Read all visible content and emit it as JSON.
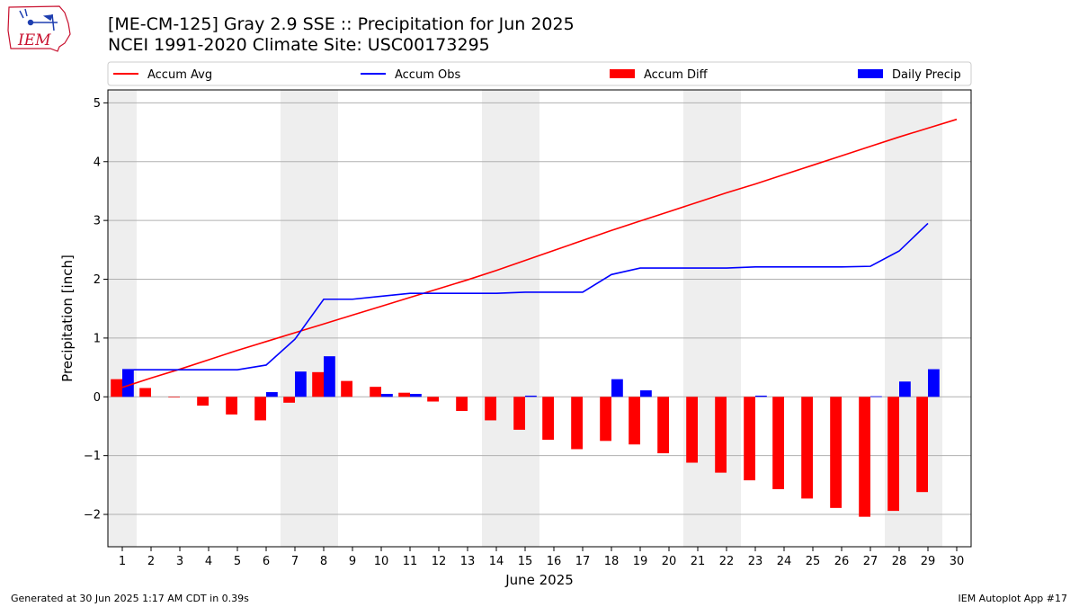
{
  "logo": {
    "text": "IEM",
    "color": "#c8102e"
  },
  "title": "[ME-CM-125] Gray 2.9 SSE :: Precipitation for Jun 2025",
  "subtitle": "NCEI 1991-2020 Climate Site: USC00173295",
  "footer": {
    "left": "Generated at 30 Jun 2025 1:17 AM CDT in 0.39s",
    "right": "IEM Autoplot App #17"
  },
  "chart_data": {
    "type": "bar",
    "title": "[ME-CM-125] Gray 2.9 SSE :: Precipitation for Jun 2025",
    "xlabel": "June 2025",
    "ylabel": "Precipitation [inch]",
    "ylim": [
      -2.55,
      5.22
    ],
    "xlim": [
      0.5,
      30.5
    ],
    "yticks": [
      -2,
      -1,
      0,
      1,
      2,
      3,
      4,
      5
    ],
    "ytick_labels": [
      "−2",
      "−1",
      "0",
      "1",
      "2",
      "3",
      "4",
      "5"
    ],
    "x": [
      1,
      2,
      3,
      4,
      5,
      6,
      7,
      8,
      9,
      10,
      11,
      12,
      13,
      14,
      15,
      16,
      17,
      18,
      19,
      20,
      21,
      22,
      23,
      24,
      25,
      26,
      27,
      28,
      29,
      30
    ],
    "xtick_labels": [
      "1",
      "2",
      "3",
      "4",
      "5",
      "6",
      "7",
      "8",
      "9",
      "10",
      "11",
      "12",
      "13",
      "14",
      "15",
      "16",
      "17",
      "18",
      "19",
      "20",
      "21",
      "22",
      "23",
      "24",
      "25",
      "26",
      "27",
      "28",
      "29",
      "30"
    ],
    "weekend_shading": [
      [
        0.5,
        1.5
      ],
      [
        6.5,
        8.5
      ],
      [
        13.5,
        15.5
      ],
      [
        20.5,
        22.5
      ],
      [
        27.5,
        29.5
      ]
    ],
    "grid": "horizontal",
    "legend_placement": "top",
    "series": [
      {
        "name": "Accum Avg",
        "kind": "line",
        "color": "#ff0000",
        "values": [
          0.16,
          0.32,
          0.47,
          0.63,
          0.79,
          0.94,
          1.09,
          1.24,
          1.39,
          1.54,
          1.69,
          1.84,
          1.99,
          2.15,
          2.32,
          2.49,
          2.66,
          2.83,
          2.99,
          3.15,
          3.31,
          3.47,
          3.62,
          3.78,
          3.94,
          4.1,
          4.26,
          4.42,
          4.57,
          4.72
        ]
      },
      {
        "name": "Accum Obs",
        "kind": "line",
        "color": "#0000ff",
        "values": [
          0.46,
          0.46,
          0.46,
          0.46,
          0.46,
          0.54,
          0.98,
          1.66,
          1.66,
          1.71,
          1.76,
          1.76,
          1.76,
          1.76,
          1.78,
          1.78,
          1.78,
          2.08,
          2.19,
          2.19,
          2.19,
          2.19,
          2.21,
          2.21,
          2.21,
          2.21,
          2.22,
          2.48,
          2.95,
          null
        ]
      },
      {
        "name": "Accum Diff",
        "kind": "bar",
        "color": "#ff0000",
        "values": [
          0.3,
          0.15,
          -0.01,
          -0.15,
          -0.3,
          -0.4,
          -0.1,
          0.42,
          0.27,
          0.17,
          0.07,
          -0.08,
          -0.24,
          -0.4,
          -0.56,
          -0.73,
          -0.89,
          -0.75,
          -0.81,
          -0.96,
          -1.12,
          -1.29,
          -1.42,
          -1.57,
          -1.73,
          -1.89,
          -2.04,
          -1.94,
          -1.62,
          null
        ]
      },
      {
        "name": "Daily Precip",
        "kind": "bar",
        "color": "#0000ff",
        "values": [
          0.46,
          0.0,
          0.0,
          0.0,
          0.0,
          0.08,
          0.43,
          0.69,
          0.0,
          0.05,
          0.05,
          0.0,
          0.0,
          0.0,
          0.02,
          0.0,
          0.0,
          0.3,
          0.11,
          0.0,
          0.0,
          0.0,
          0.02,
          0.0,
          0.0,
          0.0,
          0.01,
          0.26,
          0.47,
          null
        ]
      }
    ]
  }
}
